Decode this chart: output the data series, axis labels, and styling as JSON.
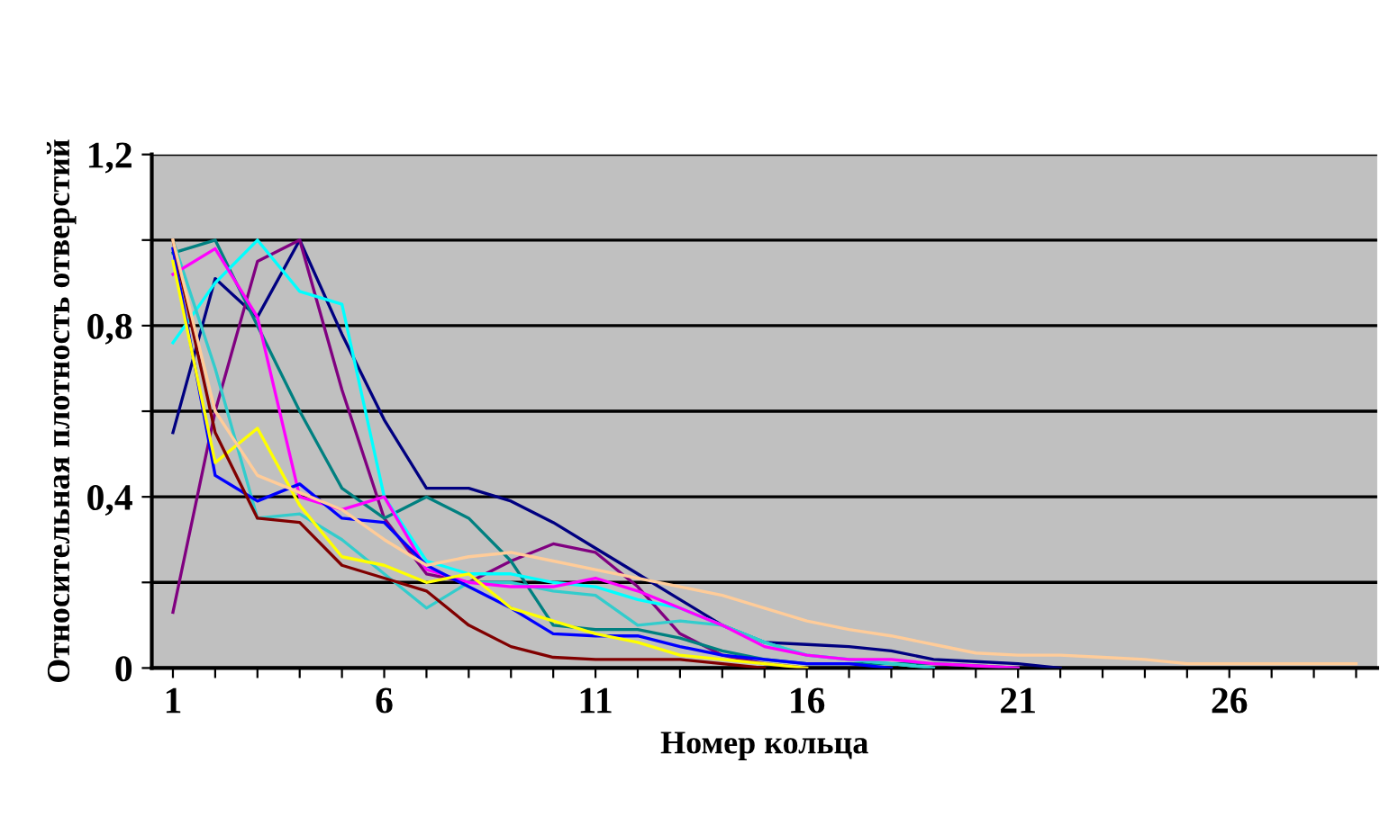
{
  "chart_data": {
    "type": "line",
    "xlabel": "Номер кольца",
    "ylabel": "Относительная плотность отверстий",
    "xlim": [
      0.5,
      29.5
    ],
    "ylim": [
      0,
      1.2
    ],
    "xticks": [
      1,
      {
        "value": 2,
        "label": null
      },
      {
        "value": 3,
        "label": null
      },
      {
        "value": 4,
        "label": null
      },
      {
        "value": 5,
        "label": null
      },
      6,
      {
        "value": 7,
        "label": null
      },
      {
        "value": 8,
        "label": null
      },
      {
        "value": 9,
        "label": null
      },
      {
        "value": 10,
        "label": null
      },
      11,
      {
        "value": 12,
        "label": null
      },
      {
        "value": 13,
        "label": null
      },
      {
        "value": 14,
        "label": null
      },
      {
        "value": 15,
        "label": null
      },
      16,
      {
        "value": 17,
        "label": null
      },
      {
        "value": 18,
        "label": null
      },
      {
        "value": 19,
        "label": null
      },
      {
        "value": 20,
        "label": null
      },
      21,
      {
        "value": 22,
        "label": null
      },
      {
        "value": 23,
        "label": null
      },
      {
        "value": 24,
        "label": null
      },
      {
        "value": 25,
        "label": null
      },
      26,
      {
        "value": 27,
        "label": null
      },
      {
        "value": 28,
        "label": null
      },
      {
        "value": 29,
        "label": null
      }
    ],
    "yticks": [
      0,
      {
        "value": 0.2,
        "label": null
      },
      {
        "value": 0.4,
        "label": "0,4"
      },
      {
        "value": 0.6,
        "label": null
      },
      {
        "value": 0.8,
        "label": "0,8"
      },
      {
        "value": 1.0,
        "label": null
      },
      {
        "value": 1.2,
        "label": "1,2"
      }
    ],
    "grid": "y",
    "marker": "none",
    "line_style": "solid",
    "series": [
      {
        "color": "#000080",
        "x": [
          1,
          2,
          3,
          4,
          5,
          6,
          7,
          8,
          9,
          10,
          11,
          12,
          13,
          14,
          15,
          16,
          17,
          18,
          19,
          20,
          21,
          22
        ],
        "values": [
          0.55,
          0.91,
          0.82,
          1.0,
          0.78,
          0.58,
          0.42,
          0.42,
          0.39,
          0.34,
          0.28,
          0.22,
          0.16,
          0.1,
          0.06,
          0.055,
          0.05,
          0.04,
          0.02,
          0.015,
          0.01,
          0
        ]
      },
      {
        "color": "#800080",
        "x": [
          1,
          2,
          3,
          4,
          5,
          6,
          7,
          8,
          9,
          10,
          11,
          12,
          13,
          14,
          15,
          16
        ],
        "values": [
          0.13,
          0.6,
          0.95,
          1.0,
          0.65,
          0.35,
          0.22,
          0.2,
          0.25,
          0.29,
          0.27,
          0.19,
          0.08,
          0.03,
          0.01,
          0
        ]
      },
      {
        "color": "#008080",
        "x": [
          1,
          2,
          3,
          4,
          5,
          6,
          7,
          8,
          9,
          10,
          11,
          12,
          13,
          14,
          15,
          16,
          17,
          18,
          19,
          20,
          21
        ],
        "values": [
          0.97,
          1.0,
          0.8,
          0.6,
          0.42,
          0.35,
          0.4,
          0.35,
          0.25,
          0.1,
          0.09,
          0.09,
          0.07,
          0.04,
          0.02,
          0.01,
          0.01,
          0.01,
          0.01,
          0.005,
          0
        ]
      },
      {
        "color": "#00FFFF",
        "x": [
          1,
          2,
          3,
          4,
          5,
          6,
          7,
          8,
          9,
          10,
          11,
          12,
          13,
          14,
          15,
          16,
          17,
          18,
          19
        ],
        "values": [
          0.76,
          0.9,
          1.0,
          0.88,
          0.85,
          0.4,
          0.25,
          0.22,
          0.22,
          0.2,
          0.19,
          0.16,
          0.14,
          0.1,
          0.06,
          0.03,
          0.02,
          0.01,
          0
        ]
      },
      {
        "color": "#33CCCC",
        "x": [
          1,
          2,
          3,
          4,
          5,
          6,
          7,
          8,
          9,
          10,
          11,
          12,
          13,
          14,
          15,
          16,
          17,
          18,
          19
        ],
        "values": [
          1.0,
          0.7,
          0.35,
          0.36,
          0.3,
          0.22,
          0.14,
          0.2,
          0.2,
          0.18,
          0.17,
          0.1,
          0.11,
          0.1,
          0.06,
          0.03,
          0.02,
          0.01,
          0
        ]
      },
      {
        "color": "#FF00FF",
        "x": [
          1,
          2,
          3,
          4,
          5,
          6,
          7,
          8,
          9,
          10,
          11,
          12,
          13,
          14,
          15,
          16,
          17,
          18,
          19,
          20,
          21
        ],
        "values": [
          0.92,
          0.98,
          0.82,
          0.4,
          0.37,
          0.4,
          0.23,
          0.2,
          0.19,
          0.19,
          0.21,
          0.18,
          0.14,
          0.1,
          0.05,
          0.03,
          0.02,
          0.02,
          0.01,
          0.005,
          0
        ]
      },
      {
        "color": "#0000FF",
        "x": [
          1,
          2,
          3,
          4,
          5,
          6,
          7,
          8,
          9,
          10,
          11,
          12,
          13,
          14,
          15,
          16,
          17,
          18
        ],
        "values": [
          0.98,
          0.45,
          0.39,
          0.43,
          0.35,
          0.34,
          0.24,
          0.19,
          0.14,
          0.08,
          0.075,
          0.075,
          0.05,
          0.03,
          0.02,
          0.01,
          0.01,
          0
        ]
      },
      {
        "color": "#FFFF00",
        "x": [
          1,
          2,
          3,
          4,
          5,
          6,
          7,
          8,
          9,
          10,
          11,
          12,
          13,
          14,
          15,
          16
        ],
        "values": [
          0.95,
          0.48,
          0.56,
          0.38,
          0.26,
          0.24,
          0.2,
          0.22,
          0.14,
          0.11,
          0.08,
          0.06,
          0.03,
          0.02,
          0.01,
          0
        ]
      },
      {
        "color": "#800000",
        "x": [
          1,
          2,
          3,
          4,
          5,
          6,
          7,
          8,
          9,
          10,
          11,
          12,
          13,
          14,
          15
        ],
        "values": [
          1.0,
          0.55,
          0.35,
          0.34,
          0.24,
          0.21,
          0.18,
          0.1,
          0.05,
          0.025,
          0.02,
          0.02,
          0.02,
          0.01,
          0
        ]
      },
      {
        "color": "#FFCC99",
        "x": [
          1,
          2,
          3,
          4,
          5,
          6,
          7,
          8,
          9,
          10,
          11,
          12,
          13,
          14,
          15,
          16,
          17,
          18,
          19,
          20,
          21,
          22,
          23,
          24,
          25,
          26,
          27,
          28,
          29
        ],
        "values": [
          1.0,
          0.6,
          0.45,
          0.41,
          0.37,
          0.3,
          0.24,
          0.26,
          0.27,
          0.25,
          0.23,
          0.21,
          0.19,
          0.17,
          0.14,
          0.11,
          0.09,
          0.075,
          0.055,
          0.035,
          0.03,
          0.03,
          0.025,
          0.02,
          0.01,
          0.01,
          0.01,
          0.01,
          0.01
        ]
      }
    ]
  }
}
